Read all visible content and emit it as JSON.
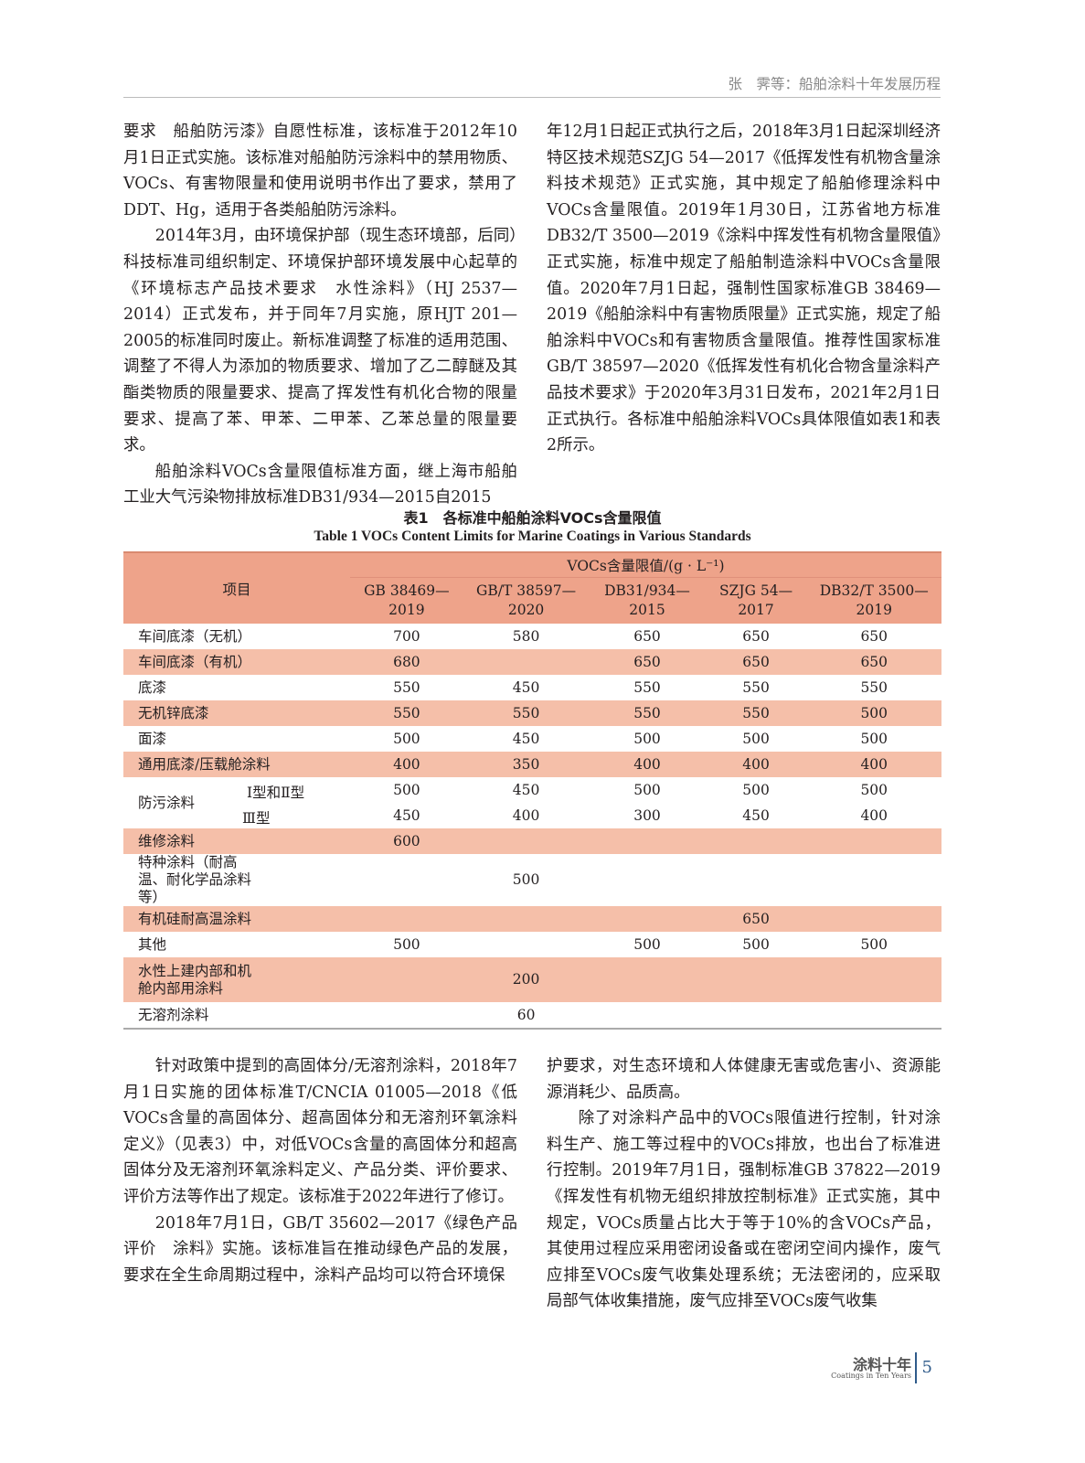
{
  "header": {
    "running_title": "张　霁等：船舶涂料十年发展历程"
  },
  "top_left": [
    {
      "indent": false,
      "text": "要求　船舶防污漆》自愿性标准，该标准于2012年10月1日正式实施。该标准对船舶防污涂料中的禁用物质、VOCs、有害物限量和使用说明书作出了要求，禁用了DDT、Hg，适用于各类船舶防污涂料。"
    },
    {
      "indent": true,
      "text": "2014年3月，由环境保护部（现生态环境部，后同）科技标准司组织制定、环境保护部环境发展中心起草的《环境标志产品技术要求　水性涂料》（HJ 2537—2014）正式发布，并于同年7月实施，原HJT 201—2005的标准同时废止。新标准调整了标准的适用范围、调整了不得人为添加的物质要求、增加了乙二醇醚及其酯类物质的限量要求、提高了挥发性有机化合物的限量要求、提高了苯、甲苯、二甲苯、乙苯总量的限量要求。"
    },
    {
      "indent": true,
      "text": "船舶涂料VOCs含量限值标准方面，继上海市船舶工业大气污染物排放标准DB31/934—2015自2015"
    }
  ],
  "top_right": [
    {
      "indent": false,
      "text": "年12月1日起正式执行之后，2018年3月1日起深圳经济特区技术规范SZJG 54—2017《低挥发性有机物含量涂料技术规范》正式实施，其中规定了船舶修理涂料中VOCs含量限值。2019年1月30日，江苏省地方标准DB32/T 3500—2019《涂料中挥发性有机物含量限值》正式实施，标准中规定了船舶制造涂料中VOCs含量限值。2020年7月1日起，强制性国家标准GB 38469—2019《船舶涂料中有害物质限量》正式实施，规定了船舶涂料中VOCs和有害物质含量限值。推荐性国家标准GB/T 38597—2020《低挥发性有机化合物含量涂料产品技术要求》于2020年3月31日发布，2021年2月1日正式执行。各标准中船舶涂料VOCs具体限值如表1和表2所示。"
    }
  ],
  "table": {
    "caption_cn": "表1　各标准中船舶涂料VOCs含量限值",
    "caption_en": "Table 1   VOCs Content Limits for Marine Coatings in Various Standards",
    "item_header": "项目",
    "group_header": "VOCs含量限值/(g · L⁻¹)",
    "columns": [
      "GB 38469—2019",
      "GB/T 38597—2020",
      "DB31/934—2015",
      "SZJG 54—2017",
      "DB32/T 3500—2019"
    ],
    "rows": [
      {
        "item": "车间底漆（无机）",
        "values": [
          "700",
          "580",
          "650",
          "650",
          "650"
        ]
      },
      {
        "item": "车间底漆（有机）",
        "values": [
          "680",
          "",
          "650",
          "650",
          "650"
        ]
      },
      {
        "item": "底漆",
        "values": [
          "550",
          "450",
          "550",
          "550",
          "550"
        ]
      },
      {
        "item": "无机锌底漆",
        "values": [
          "550",
          "550",
          "550",
          "550",
          "500"
        ]
      },
      {
        "item": "面漆",
        "values": [
          "500",
          "450",
          "500",
          "500",
          "500"
        ]
      },
      {
        "item": "通用底漆/压载舱涂料",
        "values": [
          "400",
          "350",
          "400",
          "400",
          "400"
        ]
      },
      {
        "item": "防污涂料",
        "sub": "Ⅰ型和Ⅱ型",
        "values": [
          "500",
          "450",
          "500",
          "500",
          "500"
        ]
      },
      {
        "item": "防污涂料",
        "sub": "Ⅲ型",
        "values": [
          "450",
          "400",
          "300",
          "450",
          "400"
        ]
      },
      {
        "item": "维修涂料",
        "values": [
          "600",
          "",
          "",
          "",
          ""
        ]
      },
      {
        "item": "特种涂料（耐高温、耐化学品涂料等）",
        "values": [
          "",
          "500",
          "",
          "",
          ""
        ]
      },
      {
        "item": "有机硅耐高温涂料",
        "values": [
          "",
          "",
          "",
          "650",
          ""
        ]
      },
      {
        "item": "其他",
        "values": [
          "500",
          "",
          "500",
          "500",
          "500"
        ]
      },
      {
        "item": "水性上建内部和机舱内部用涂料",
        "values": [
          "",
          "200",
          "",
          "",
          ""
        ]
      },
      {
        "item": "无溶剂涂料",
        "values": [
          "",
          "60",
          "",
          "",
          ""
        ]
      }
    ]
  },
  "bottom_left": [
    {
      "indent": true,
      "text": "针对政策中提到的高固体分/无溶剂涂料，2018年7月1日实施的团体标准T/CNCIA 01005—2018《低VOCs含量的高固体分、超高固体分和无溶剂环氧涂料定义》（见表3）中，对低VOCs含量的高固体分和超高固体分及无溶剂环氧涂料定义、产品分类、评价要求、评价方法等作出了规定。该标准于2022年进行了修订。"
    },
    {
      "indent": true,
      "text": "2018年7月1日，GB/T 35602—2017《绿色产品评价　涂料》实施。该标准旨在推动绿色产品的发展，要求在全生命周期过程中，涂料产品均可以符合环境保"
    }
  ],
  "bottom_right": [
    {
      "indent": false,
      "text": "护要求，对生态环境和人体健康无害或危害小、资源能源消耗少、品质高。"
    },
    {
      "indent": true,
      "text": "除了对涂料产品中的VOCs限值进行控制，针对涂料生产、施工等过程中的VOCs排放，也出台了标准进行控制。2019年7月1日，强制标准GB 37822—2019《挥发性有机物无组织排放控制标准》正式实施，其中规定，VOCs质量占比大于等于10%的含VOCs产品，其使用过程应采用密闭设备或在密闭空间内操作，废气应排至VOCs废气收集处理系统；无法密闭的，应采取局部气体收集措施，废气应排至VOCs废气收集"
    }
  ],
  "footer": {
    "journal_cn": "涂料十年",
    "journal_en": "Coatings in Ten Years",
    "page": "5"
  },
  "colors": {
    "table_header": "#eea38a",
    "table_stripe": "#f5bfa9",
    "footer_accent": "#2f5b8a"
  }
}
